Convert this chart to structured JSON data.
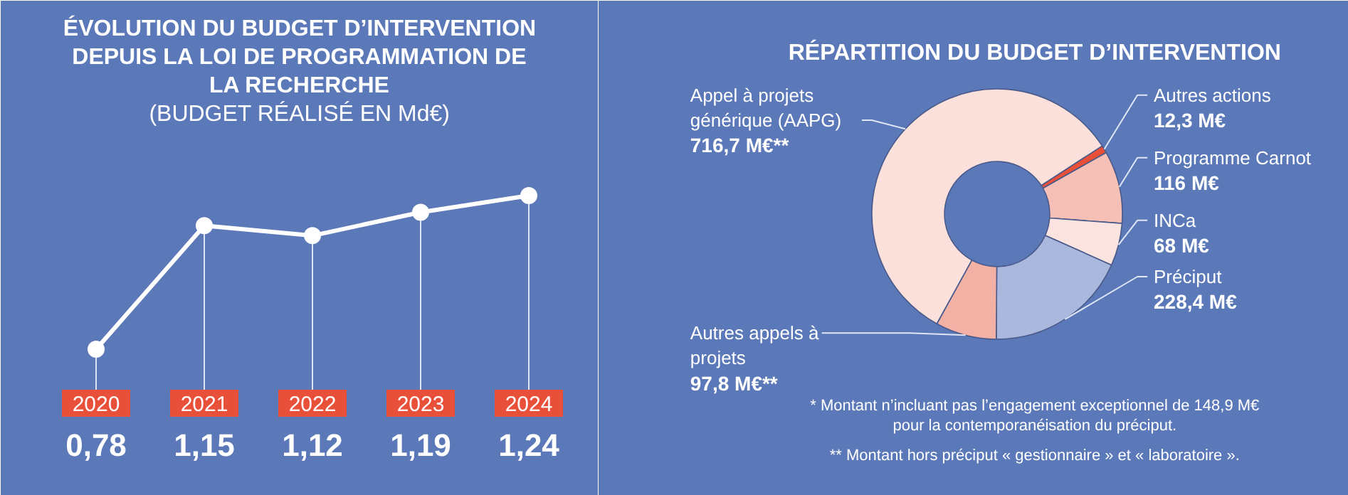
{
  "chart_data": [
    {
      "type": "line",
      "title": "ÉVOLUTION DU BUDGET D’INTERVENTION DEPUIS LA LOI DE PROGRAMMATION DE LA RECHERCHE",
      "subtitle": "(BUDGET RÉALISÉ EN Md€)",
      "categories": [
        "2020",
        "2021",
        "2022",
        "2023",
        "2024"
      ],
      "values": [
        0.78,
        1.15,
        1.12,
        1.19,
        1.24
      ],
      "value_labels": [
        "0,78",
        "1,15",
        "1,12",
        "1,19",
        "1,24"
      ],
      "color": "#ffffff",
      "marker": "circle",
      "tick_labels": "x",
      "grid": "x"
    },
    {
      "type": "donut",
      "title": "RÉPARTITION DU BUDGET D’INTERVENTION",
      "categories": [
        "Autres actions",
        "Programme Carnot",
        "INCa",
        "Préciput",
        "Autres appels à projets",
        "Appel à projets générique (AAPG)"
      ],
      "values": [
        12.3,
        116,
        68,
        228.4,
        97.8,
        716.7
      ],
      "value_labels": [
        "12,3 M€",
        "116 M€",
        "68 M€",
        "228,4 M€",
        "97,8 M€**",
        "716,7 M€**"
      ],
      "colors": [
        "#e8503a",
        "#f6c0b6",
        "#fbe3df",
        "#a9b8dc",
        "#f3b1a5",
        "#fbe0db"
      ],
      "annotations": [
        "* Montant n’incluant pas l’engagement exceptionnel de 148,9 M€ pour la contemporanéisation du préciput.",
        "** Montant hors préciput « gestionnaire » et « laboratoire »."
      ]
    }
  ]
}
